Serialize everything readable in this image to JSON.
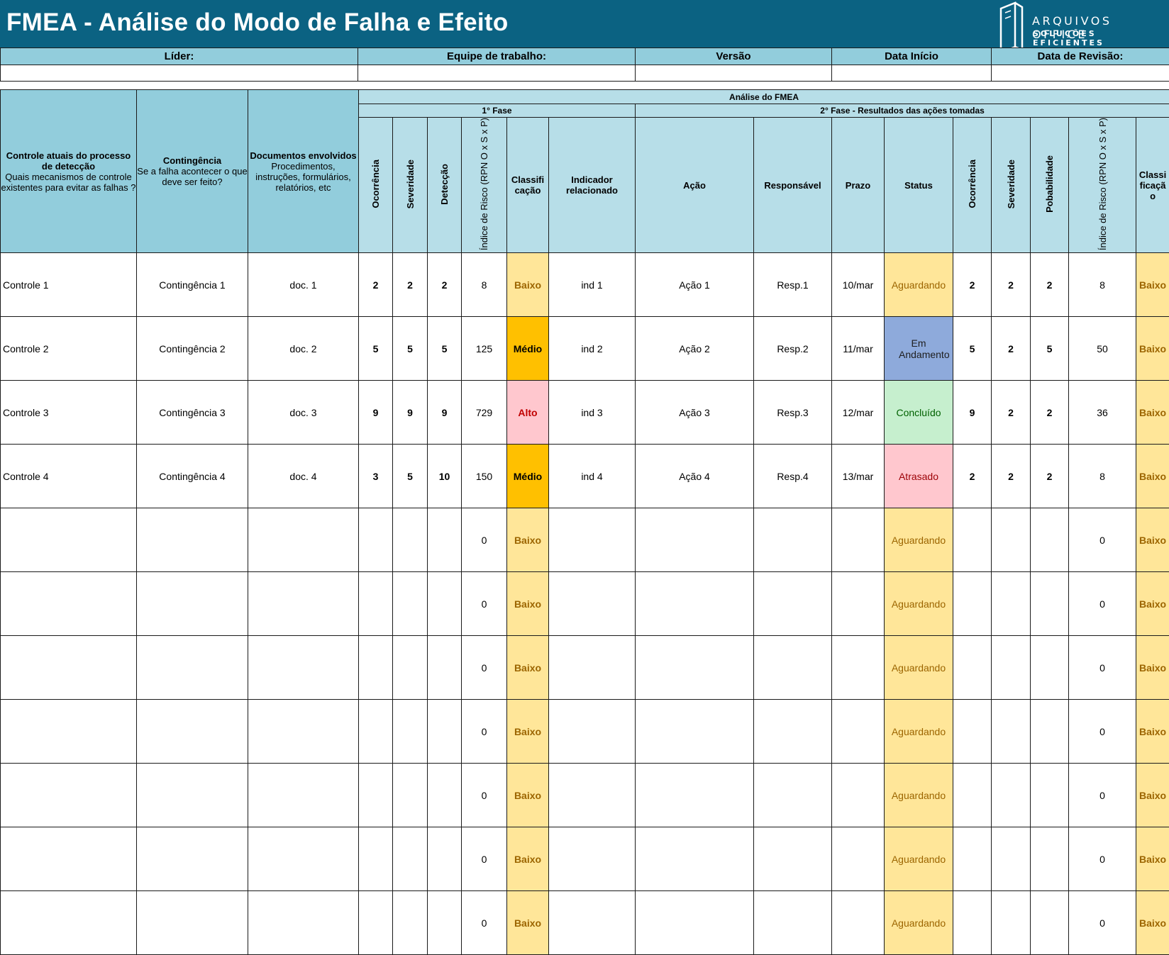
{
  "header": {
    "title": "FMEA - Análise do Modo de Falha e Efeito",
    "logo_line1": "ARQUIVOS OFFICE",
    "logo_line2": "SOLUÇÕES EFICIENTES"
  },
  "info": {
    "lider": "Líder:",
    "equipe": "Equipe de trabalho:",
    "versao": "Versão",
    "data_inicio": "Data Início",
    "data_revisao": "Data de Revisão:"
  },
  "columns": {
    "analise": "Análise do FMEA",
    "fase1": "1° Fase",
    "fase2": "2° Fase - Resultados das ações tomadas",
    "controle_title": "Controle atuais do processo de detecção",
    "controle_desc": "Quais mecanismos de controle existentes para evitar as falhas ?",
    "contingencia_title": "Contingência",
    "contingencia_desc": "Se a falha acontecer o que deve ser feito?",
    "documentos_title": "Documentos envolvidos",
    "documentos_desc": "Procedimentos, instruções, formulários, relatórios, etc",
    "ocorrencia": "Ocorrência",
    "severidade": "Severidade",
    "deteccao": "Detecção",
    "indice_risco_1": "Índice de Risco (RPN O x S x P)",
    "classificacao_1": "Classificação",
    "indicador": "Indicador relacionado",
    "acao": "Ação",
    "responsavel": "Responsável",
    "prazo": "Prazo",
    "status": "Status",
    "ocorrencia2": "Ocorrência",
    "severidade2": "Severidade",
    "probabilidade": "Pobabilidade",
    "indice_risco_2": "Índice de Risco (RPN O x S x P)",
    "classificacao_2": "Classificação"
  },
  "rows": [
    {
      "controle": "Controle 1",
      "contingencia": "Contingência 1",
      "documento": "doc. 1",
      "o": "2",
      "s": "2",
      "d": "2",
      "rpn": "8",
      "classe": "Baixo",
      "indicador": "ind 1",
      "acao": "Ação 1",
      "resp": "Resp.1",
      "prazo": "10/mar",
      "status": "Aguardando",
      "o2": "2",
      "s2": "2",
      "p2": "2",
      "rpn2": "8",
      "classe2": "Baixo"
    },
    {
      "controle": "Controle 2",
      "contingencia": "Contingência 2",
      "documento": "doc. 2",
      "o": "5",
      "s": "5",
      "d": "5",
      "rpn": "125",
      "classe": "Médio",
      "indicador": "ind 2",
      "acao": "Ação 2",
      "resp": "Resp.2",
      "prazo": "11/mar",
      "status": "Em Andamento",
      "o2": "5",
      "s2": "2",
      "p2": "5",
      "rpn2": "50",
      "classe2": "Baixo"
    },
    {
      "controle": "Controle 3",
      "contingencia": "Contingência 3",
      "documento": "doc. 3",
      "o": "9",
      "s": "9",
      "d": "9",
      "rpn": "729",
      "classe": "Alto",
      "indicador": "ind 3",
      "acao": "Ação 3",
      "resp": "Resp.3",
      "prazo": "12/mar",
      "status": "Concluído",
      "o2": "9",
      "s2": "2",
      "p2": "2",
      "rpn2": "36",
      "classe2": "Baixo"
    },
    {
      "controle": "Controle 4",
      "contingencia": "Contingência 4",
      "documento": "doc. 4",
      "o": "3",
      "s": "5",
      "d": "10",
      "rpn": "150",
      "classe": "Médio",
      "indicador": "ind 4",
      "acao": "Ação 4",
      "resp": "Resp.4",
      "prazo": "13/mar",
      "status": "Atrasado",
      "o2": "2",
      "s2": "2",
      "p2": "2",
      "rpn2": "8",
      "classe2": "Baixo"
    },
    {
      "controle": "",
      "contingencia": "",
      "documento": "",
      "o": "",
      "s": "",
      "d": "",
      "rpn": "0",
      "classe": "Baixo",
      "indicador": "",
      "acao": "",
      "resp": "",
      "prazo": "",
      "status": "Aguardando",
      "o2": "",
      "s2": "",
      "p2": "",
      "rpn2": "0",
      "classe2": "Baixo"
    },
    {
      "controle": "",
      "contingencia": "",
      "documento": "",
      "o": "",
      "s": "",
      "d": "",
      "rpn": "0",
      "classe": "Baixo",
      "indicador": "",
      "acao": "",
      "resp": "",
      "prazo": "",
      "status": "Aguardando",
      "o2": "",
      "s2": "",
      "p2": "",
      "rpn2": "0",
      "classe2": "Baixo"
    },
    {
      "controle": "",
      "contingencia": "",
      "documento": "",
      "o": "",
      "s": "",
      "d": "",
      "rpn": "0",
      "classe": "Baixo",
      "indicador": "",
      "acao": "",
      "resp": "",
      "prazo": "",
      "status": "Aguardando",
      "o2": "",
      "s2": "",
      "p2": "",
      "rpn2": "0",
      "classe2": "Baixo"
    },
    {
      "controle": "",
      "contingencia": "",
      "documento": "",
      "o": "",
      "s": "",
      "d": "",
      "rpn": "0",
      "classe": "Baixo",
      "indicador": "",
      "acao": "",
      "resp": "",
      "prazo": "",
      "status": "Aguardando",
      "o2": "",
      "s2": "",
      "p2": "",
      "rpn2": "0",
      "classe2": "Baixo"
    },
    {
      "controle": "",
      "contingencia": "",
      "documento": "",
      "o": "",
      "s": "",
      "d": "",
      "rpn": "0",
      "classe": "Baixo",
      "indicador": "",
      "acao": "",
      "resp": "",
      "prazo": "",
      "status": "Aguardando",
      "o2": "",
      "s2": "",
      "p2": "",
      "rpn2": "0",
      "classe2": "Baixo"
    },
    {
      "controle": "",
      "contingencia": "",
      "documento": "",
      "o": "",
      "s": "",
      "d": "",
      "rpn": "0",
      "classe": "Baixo",
      "indicador": "",
      "acao": "",
      "resp": "",
      "prazo": "",
      "status": "Aguardando",
      "o2": "",
      "s2": "",
      "p2": "",
      "rpn2": "0",
      "classe2": "Baixo"
    },
    {
      "controle": "",
      "contingencia": "",
      "documento": "",
      "o": "",
      "s": "",
      "d": "",
      "rpn": "0",
      "classe": "Baixo",
      "indicador": "",
      "acao": "",
      "resp": "",
      "prazo": "",
      "status": "Aguardando",
      "o2": "",
      "s2": "",
      "p2": "",
      "rpn2": "0",
      "classe2": "Baixo"
    }
  ],
  "colors": {
    "banner": "#0b6282",
    "header_fill": "#92cddc",
    "subheader_fill": "#b7dee8",
    "baixo": "#ffe699",
    "medio": "#ffc000",
    "alto": "#ffc7ce",
    "em_andamento": "#8eaadb",
    "concluido": "#c6efce",
    "atrasado": "#ffc7ce"
  },
  "icons": {
    "logo": "document-logo-icon"
  }
}
